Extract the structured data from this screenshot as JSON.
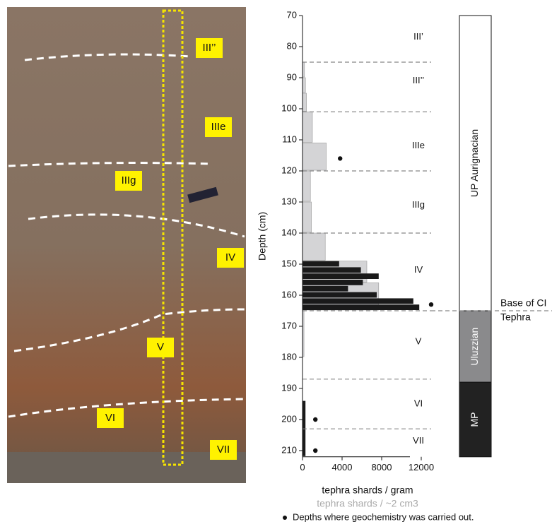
{
  "photo": {
    "labels": [
      "III’’",
      "IIIe",
      "IIIg",
      "IV",
      "V",
      "VI",
      "VII"
    ]
  },
  "chart_data": {
    "type": "bar",
    "orientation": "horizontal",
    "ylabel": "Depth (cm)",
    "ylim": [
      70,
      212
    ],
    "yticks": [
      70,
      80,
      90,
      100,
      110,
      120,
      130,
      140,
      150,
      160,
      170,
      180,
      190,
      200,
      210
    ],
    "y_inverted": true,
    "xlim": [
      0,
      13000
    ],
    "xticks": [
      0,
      4000,
      8000,
      12000
    ],
    "series": [
      {
        "name": "tephra shards / ~2 cm3",
        "color": "#d4d4d6",
        "bins": [
          85,
          90,
          95,
          101,
          111,
          120,
          130,
          140,
          149,
          156,
          165,
          180
        ],
        "values": [
          200,
          300,
          400,
          1000,
          2400,
          800,
          900,
          2300,
          6500,
          7700,
          150
        ]
      },
      {
        "name": "tephra shards / gram",
        "color": "#1a1a1a",
        "bins": [
          149,
          151,
          153,
          155,
          157,
          159,
          161,
          163,
          165,
          194,
          212
        ],
        "values": [
          3700,
          5900,
          7700,
          6100,
          4600,
          7500,
          11200,
          11800,
          null,
          300
        ]
      }
    ],
    "unit_boundaries": [
      85,
      101,
      120,
      140,
      165,
      187,
      203
    ],
    "units": [
      {
        "label": "III’",
        "depth": 77
      },
      {
        "label": "III’’",
        "depth": 91
      },
      {
        "label": "IIIe",
        "depth": 112
      },
      {
        "label": "IIIg",
        "depth": 131
      },
      {
        "label": "IV",
        "depth": 152
      },
      {
        "label": "V",
        "depth": 175
      },
      {
        "label": "VI",
        "depth": 195
      },
      {
        "label": "VII",
        "depth": 207
      }
    ],
    "geochem": {
      "name": "Depths where geochemistry was carried out.",
      "x": [
        3800,
        13000,
        1300,
        1300
      ],
      "y": [
        116,
        163,
        200,
        210
      ]
    },
    "culture": [
      {
        "label": "UP Aurignacian",
        "top": 70,
        "bottom": 165,
        "color": "#ffffff"
      },
      {
        "label": "Uluzzian",
        "top": 165,
        "bottom": 188,
        "color": "#8a8a8c"
      },
      {
        "label": "MP",
        "top": 188,
        "bottom": 212,
        "color": "#222222"
      }
    ],
    "annotation": {
      "text": [
        "Base of CI",
        "Tephra"
      ],
      "depth": 165
    }
  }
}
